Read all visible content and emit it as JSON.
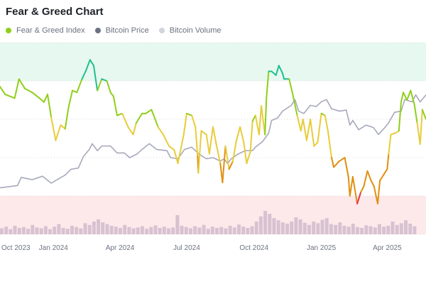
{
  "chart_data": {
    "type": "line",
    "title": "Fear & Greed Chart",
    "legend": [
      {
        "name": "Fear & Greed Index",
        "color": "#8fcf1a"
      },
      {
        "name": "Bitcoin Price",
        "color": "#6b7280"
      },
      {
        "name": "Bitcoin Volume",
        "color": "#d1d5db"
      }
    ],
    "x_unit": "days since 2024-01-01",
    "xlim": [
      -73,
      509
    ],
    "x_ticks": [
      {
        "day": -92,
        "label": "Oct 2023"
      },
      {
        "day": 0,
        "label": "Jan 2024"
      },
      {
        "day": 91,
        "label": "Apr 2024"
      },
      {
        "day": 182,
        "label": "Jul 2024"
      },
      {
        "day": 274,
        "label": "Oct 2024"
      },
      {
        "day": 366,
        "label": "Jan 2025"
      },
      {
        "day": 456,
        "label": "Apr 2025"
      }
    ],
    "index_ylim": [
      0,
      100
    ],
    "gridlines": [
      0,
      20,
      40,
      60,
      80,
      100
    ],
    "zones": [
      {
        "name": "extreme-greed",
        "from": 80,
        "to": 100,
        "color": "#e6f8f0"
      },
      {
        "name": "extreme-fear",
        "from": 0,
        "to": 20,
        "color": "#fde8ea"
      }
    ],
    "index_colors": [
      {
        "min": 80,
        "color": "#1fbf8f"
      },
      {
        "min": 60,
        "color": "#8fcf1a"
      },
      {
        "min": 40,
        "color": "#e8cc3a"
      },
      {
        "min": 20,
        "color": "#e08f10"
      },
      {
        "min": 0,
        "color": "#e0334a"
      }
    ],
    "fear_greed_index": [
      [
        -73,
        77
      ],
      [
        -66,
        73
      ],
      [
        -53,
        71
      ],
      [
        -47,
        81
      ],
      [
        -39,
        76
      ],
      [
        -29,
        74
      ],
      [
        -19,
        71
      ],
      [
        -13,
        69
      ],
      [
        -8,
        73
      ],
      [
        -3,
        61
      ],
      [
        3,
        49
      ],
      [
        10,
        57
      ],
      [
        16,
        55
      ],
      [
        21,
        67
      ],
      [
        26,
        75
      ],
      [
        32,
        74
      ],
      [
        39,
        81
      ],
      [
        44,
        85
      ],
      [
        50,
        91
      ],
      [
        55,
        88
      ],
      [
        60,
        75
      ],
      [
        66,
        81
      ],
      [
        73,
        80
      ],
      [
        78,
        74
      ],
      [
        82,
        72
      ],
      [
        87,
        62
      ],
      [
        94,
        63
      ],
      [
        102,
        56
      ],
      [
        109,
        52
      ],
      [
        113,
        58
      ],
      [
        121,
        63
      ],
      [
        126,
        63
      ],
      [
        134,
        65
      ],
      [
        143,
        56
      ],
      [
        150,
        52
      ],
      [
        158,
        46
      ],
      [
        165,
        44
      ],
      [
        170,
        37
      ],
      [
        178,
        52
      ],
      [
        182,
        63
      ],
      [
        189,
        62
      ],
      [
        194,
        56
      ],
      [
        197,
        41
      ],
      [
        198,
        32
      ],
      [
        202,
        54
      ],
      [
        209,
        52
      ],
      [
        213,
        42
      ],
      [
        218,
        56
      ],
      [
        223,
        46
      ],
      [
        228,
        37
      ],
      [
        231,
        27
      ],
      [
        235,
        46
      ],
      [
        240,
        34
      ],
      [
        245,
        38
      ],
      [
        250,
        49
      ],
      [
        255,
        56
      ],
      [
        260,
        48
      ],
      [
        264,
        37
      ],
      [
        269,
        43
      ],
      [
        272,
        59
      ],
      [
        276,
        62
      ],
      [
        281,
        52
      ],
      [
        284,
        67
      ],
      [
        289,
        52
      ],
      [
        291,
        71
      ],
      [
        294,
        85
      ],
      [
        298,
        85
      ],
      [
        304,
        83
      ],
      [
        308,
        88
      ],
      [
        313,
        84
      ],
      [
        315,
        81
      ],
      [
        322,
        81
      ],
      [
        327,
        73
      ],
      [
        333,
        62
      ],
      [
        338,
        54
      ],
      [
        341,
        60
      ],
      [
        346,
        49
      ],
      [
        351,
        60
      ],
      [
        356,
        46
      ],
      [
        361,
        48
      ],
      [
        366,
        63
      ],
      [
        371,
        62
      ],
      [
        375,
        54
      ],
      [
        380,
        40
      ],
      [
        383,
        35
      ],
      [
        390,
        38
      ],
      [
        398,
        40
      ],
      [
        403,
        30
      ],
      [
        405,
        20
      ],
      [
        409,
        30
      ],
      [
        415,
        16
      ],
      [
        420,
        22
      ],
      [
        424,
        25
      ],
      [
        429,
        33
      ],
      [
        434,
        28
      ],
      [
        438,
        25
      ],
      [
        443,
        16
      ],
      [
        446,
        28
      ],
      [
        451,
        31
      ],
      [
        456,
        34
      ],
      [
        458,
        42
      ],
      [
        461,
        52
      ],
      [
        468,
        53
      ],
      [
        472,
        54
      ],
      [
        475,
        69
      ],
      [
        478,
        74
      ],
      [
        483,
        70
      ],
      [
        488,
        75
      ],
      [
        493,
        68
      ],
      [
        497,
        58
      ],
      [
        501,
        47
      ],
      [
        504,
        65
      ],
      [
        509,
        60
      ]
    ],
    "price_unit": "thousand USD",
    "price_ylim": [
      -10,
      155
    ],
    "bitcoin_price": [
      [
        -73,
        30
      ],
      [
        -49,
        32
      ],
      [
        -44,
        39
      ],
      [
        -29,
        37
      ],
      [
        -15,
        40
      ],
      [
        -3,
        34
      ],
      [
        5,
        37
      ],
      [
        16,
        41
      ],
      [
        24,
        46
      ],
      [
        34,
        47
      ],
      [
        41,
        57
      ],
      [
        49,
        63
      ],
      [
        53,
        68
      ],
      [
        60,
        62
      ],
      [
        66,
        66
      ],
      [
        78,
        66
      ],
      [
        87,
        60
      ],
      [
        97,
        60
      ],
      [
        104,
        56
      ],
      [
        114,
        59
      ],
      [
        121,
        63
      ],
      [
        131,
        68
      ],
      [
        141,
        63
      ],
      [
        155,
        62
      ],
      [
        160,
        56
      ],
      [
        170,
        55
      ],
      [
        179,
        63
      ],
      [
        189,
        65
      ],
      [
        199,
        59
      ],
      [
        209,
        55
      ],
      [
        218,
        56
      ],
      [
        228,
        53
      ],
      [
        233,
        55
      ],
      [
        238,
        51
      ],
      [
        243,
        55
      ],
      [
        252,
        59
      ],
      [
        262,
        62
      ],
      [
        272,
        62
      ],
      [
        276,
        65
      ],
      [
        286,
        70
      ],
      [
        294,
        77
      ],
      [
        298,
        88
      ],
      [
        306,
        90
      ],
      [
        313,
        96
      ],
      [
        325,
        101
      ],
      [
        330,
        106
      ],
      [
        335,
        96
      ],
      [
        342,
        94
      ],
      [
        351,
        101
      ],
      [
        359,
        100
      ],
      [
        366,
        104
      ],
      [
        373,
        106
      ],
      [
        380,
        98
      ],
      [
        391,
        96
      ],
      [
        400,
        97
      ],
      [
        405,
        84
      ],
      [
        409,
        88
      ],
      [
        417,
        80
      ],
      [
        427,
        84
      ],
      [
        437,
        82
      ],
      [
        444,
        76
      ],
      [
        453,
        82
      ],
      [
        458,
        86
      ],
      [
        466,
        95
      ],
      [
        475,
        96
      ],
      [
        480,
        106
      ],
      [
        490,
        104
      ],
      [
        495,
        110
      ],
      [
        501,
        104
      ],
      [
        509,
        110
      ]
    ],
    "volume_unit": "billion USD",
    "volume_start_day": -73,
    "volume_step_days": 6,
    "bitcoin_volume": [
      14,
      18,
      12,
      20,
      15,
      17,
      13,
      22,
      16,
      14,
      19,
      12,
      18,
      24,
      15,
      13,
      20,
      17,
      14,
      26,
      22,
      30,
      35,
      28,
      24,
      20,
      18,
      15,
      22,
      17,
      14,
      16,
      19,
      13,
      17,
      21,
      15,
      18,
      14,
      16,
      45,
      20,
      17,
      14,
      19,
      16,
      22,
      13,
      18,
      15,
      17,
      14,
      20,
      16,
      23,
      18,
      15,
      19,
      30,
      42,
      55,
      48,
      38,
      33,
      28,
      25,
      30,
      40,
      35,
      27,
      22,
      30,
      26,
      34,
      38,
      24,
      22,
      28,
      20,
      18,
      25,
      17,
      15,
      21,
      19,
      16,
      24,
      18,
      20,
      30,
      22,
      26,
      33,
      25,
      19
    ]
  }
}
